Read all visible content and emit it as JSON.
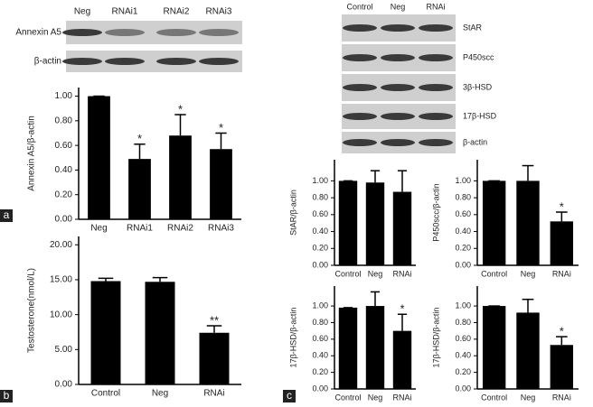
{
  "panels": [
    "a",
    "b",
    "c"
  ],
  "blots": [
    {
      "lanes": [
        "Neg",
        "RNAi1",
        "RNAi2",
        "RNAi3"
      ],
      "rows": [
        "Annexin A5",
        "β-actin"
      ]
    },
    {
      "lanes": [
        "Control",
        "Neg",
        "RNAi"
      ],
      "rows": [
        "StAR",
        "P450scc",
        "3β-HSD",
        "17β-HSD",
        "β-actin"
      ]
    }
  ],
  "chart_data": [
    {
      "type": "bar",
      "y_label": "Annexin A5/β-actin",
      "categories": [
        "Neg",
        "RNAi1",
        "RNAi2",
        "RNAi3"
      ],
      "values": [
        1.0,
        0.49,
        0.68,
        0.57
      ],
      "errors": [
        0,
        0.12,
        0.17,
        0.13
      ],
      "annotations": [
        null,
        "*",
        "*",
        "*"
      ],
      "color": "#000000",
      "ylim": [
        0,
        1.07
      ],
      "yticks": [
        {
          "value": 0,
          "label": "0.00"
        },
        {
          "value": 0.2,
          "label": "0.20"
        },
        {
          "value": 0.4,
          "label": "0.40"
        },
        {
          "value": 0.6,
          "label": "0.60"
        },
        {
          "value": 0.8,
          "label": "0.80"
        },
        {
          "value": 1.0,
          "label": "1.00"
        }
      ]
    },
    {
      "type": "bar",
      "y_label": "Testosterone(nmol/L)",
      "categories": [
        "Control",
        "Neg",
        "RNAi"
      ],
      "values": [
        14.8,
        14.7,
        7.4
      ],
      "errors": [
        0.4,
        0.6,
        1.0
      ],
      "annotations": [
        null,
        null,
        "**"
      ],
      "color": "#000000",
      "ylim": [
        0,
        21.2
      ],
      "yticks": [
        {
          "value": 0,
          "label": "0.00"
        },
        {
          "value": 5,
          "label": "5.00"
        },
        {
          "value": 10,
          "label": "10.00"
        },
        {
          "value": 15,
          "label": "15.00"
        },
        {
          "value": 20,
          "label": "20.00"
        }
      ]
    },
    {
      "type": "bar",
      "y_label": "StAR/β-actin",
      "categories": [
        "Control",
        "Neg",
        "RNAi"
      ],
      "values": [
        1.0,
        0.98,
        0.87
      ],
      "errors": [
        0,
        0.14,
        0.25
      ],
      "annotations": [
        null,
        null,
        null
      ],
      "color": "#000000",
      "ylim": [
        0,
        1.25
      ],
      "yticks": [
        {
          "value": 0,
          "label": "0.00"
        },
        {
          "value": 0.2,
          "label": "0.20"
        },
        {
          "value": 0.4,
          "label": "0.40"
        },
        {
          "value": 0.6,
          "label": "0.60"
        },
        {
          "value": 0.8,
          "label": "0.80"
        },
        {
          "value": 1.0,
          "label": "1.00"
        }
      ]
    },
    {
      "type": "bar",
      "y_label": "P450scc/β-actin",
      "categories": [
        "Control",
        "Neg",
        "RNAi"
      ],
      "values": [
        1.0,
        1.0,
        0.52
      ],
      "errors": [
        0,
        0.18,
        0.11
      ],
      "annotations": [
        null,
        null,
        "*"
      ],
      "color": "#000000",
      "ylim": [
        0,
        1.25
      ],
      "yticks": [
        {
          "value": 0,
          "label": "0.00"
        },
        {
          "value": 0.2,
          "label": "0.20"
        },
        {
          "value": 0.4,
          "label": "0.40"
        },
        {
          "value": 0.6,
          "label": "0.60"
        },
        {
          "value": 0.8,
          "label": "0.80"
        },
        {
          "value": 1.0,
          "label": "1.00"
        }
      ]
    },
    {
      "type": "bar",
      "y_label": "17β-HSD/β-actin",
      "categories": [
        "Control",
        "Neg",
        "RNAi"
      ],
      "values": [
        0.98,
        1.0,
        0.7
      ],
      "errors": [
        0,
        0.17,
        0.2
      ],
      "annotations": [
        null,
        null,
        "*"
      ],
      "color": "#000000",
      "ylim": [
        0,
        1.24
      ],
      "yticks": [
        {
          "value": 0,
          "label": "0.00"
        },
        {
          "value": 0.2,
          "label": "0.20"
        },
        {
          "value": 0.4,
          "label": "0.40"
        },
        {
          "value": 0.6,
          "label": "0.60"
        },
        {
          "value": 0.8,
          "label": "0.80"
        },
        {
          "value": 1.0,
          "label": "1.00"
        }
      ]
    },
    {
      "type": "bar",
      "y_label": "17β-HSD/β-actin",
      "categories": [
        "Control",
        "Neg",
        "RNAi"
      ],
      "values": [
        1.0,
        0.92,
        0.53
      ],
      "errors": [
        0,
        0.16,
        0.1
      ],
      "annotations": [
        null,
        null,
        "*"
      ],
      "color": "#000000",
      "ylim": [
        0,
        1.24
      ],
      "yticks": [
        {
          "value": 0,
          "label": "0.00"
        },
        {
          "value": 0.2,
          "label": "0.20"
        },
        {
          "value": 0.4,
          "label": "0.40"
        },
        {
          "value": 0.6,
          "label": "0.60"
        },
        {
          "value": 0.8,
          "label": "0.80"
        },
        {
          "value": 1.0,
          "label": "1.00"
        }
      ]
    }
  ]
}
